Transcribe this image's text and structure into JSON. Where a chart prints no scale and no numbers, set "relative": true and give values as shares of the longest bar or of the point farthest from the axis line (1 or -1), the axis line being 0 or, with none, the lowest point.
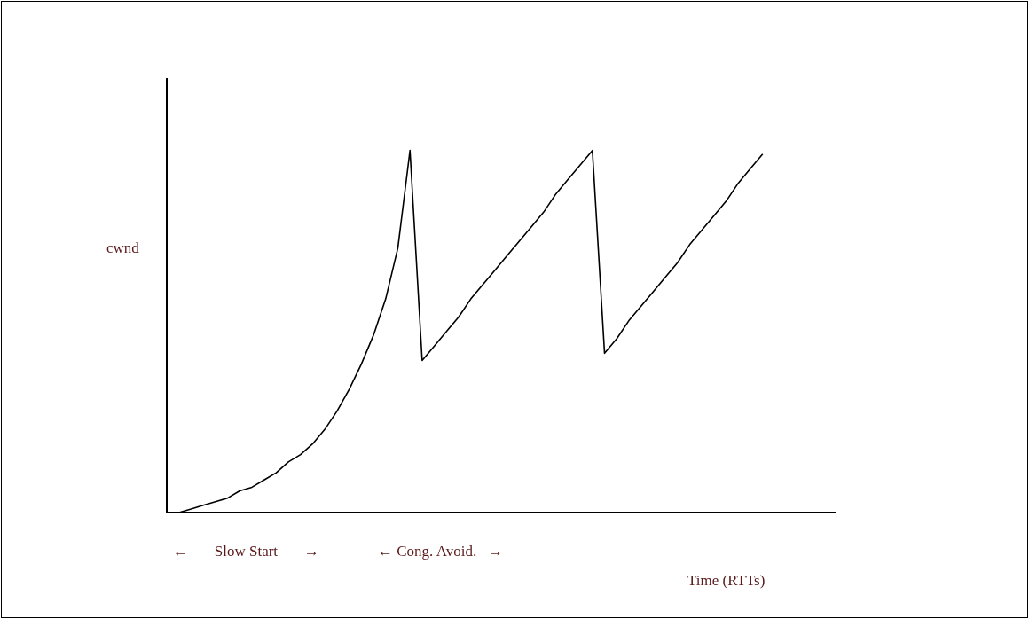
{
  "chart_data": {
    "type": "line",
    "relative": true,
    "ylabel": "cwnd",
    "xlabel": "Time (RTTs)",
    "categories": [
      null,
      null,
      null,
      null,
      null,
      null,
      null,
      null,
      null,
      null,
      null,
      null,
      null,
      null,
      null,
      null,
      null,
      null,
      null,
      null,
      null,
      null,
      null,
      null,
      null,
      null,
      null,
      null,
      null,
      null,
      null,
      null,
      null,
      null,
      null,
      null,
      null,
      null,
      null,
      null,
      null,
      null,
      null,
      null,
      null,
      null,
      null,
      null,
      null,
      null,
      null,
      null,
      null,
      null,
      null,
      null
    ],
    "series": [
      {
        "color": "#000000",
        "values": [
          0,
          0,
          0.01,
          0.02,
          0.03,
          0.04,
          0.06,
          0.07,
          0.09,
          0.11,
          0.14,
          0.16,
          0.19,
          0.23,
          0.28,
          0.34,
          0.41,
          0.49,
          0.59,
          0.73,
          1,
          0.42,
          0.46,
          0.5,
          0.54,
          0.59,
          0.63,
          0.67,
          0.71,
          0.75,
          0.79,
          0.83,
          0.88,
          0.92,
          0.96,
          1,
          0.44,
          0.48,
          0.53,
          0.57,
          0.61,
          0.65,
          0.69,
          0.74,
          0.78,
          0.82,
          0.86,
          0.91,
          0.95,
          0.99,
          null,
          null,
          null,
          null,
          null,
          null
        ]
      }
    ],
    "annotations": [
      "←       Slow Start       →",
      "← Cong. Avoid.   →"
    ],
    "marker": "none",
    "line_style": "solid"
  }
}
